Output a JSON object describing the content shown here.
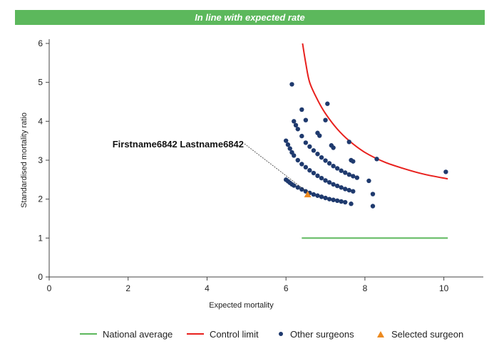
{
  "banner": {
    "text": "In line with expected rate",
    "color": "#5cb85c"
  },
  "chart_data": {
    "type": "scatter",
    "title": "",
    "xlabel": "Expected mortality",
    "ylabel": "Standardised mortality ratio",
    "xlim": [
      0,
      11
    ],
    "ylim": [
      0,
      6
    ],
    "xticks": [
      "0",
      "2",
      "4",
      "6",
      "8",
      "10"
    ],
    "yticks": [
      "0",
      "1",
      "2",
      "3",
      "4",
      "5",
      "6"
    ],
    "grid": false,
    "legend_position": "bottom",
    "callout": {
      "text": "Firstname6842 Lastname6842",
      "x": 6.55,
      "y": 2.12
    },
    "series": [
      {
        "name": "National average",
        "kind": "line",
        "color": "#5cb85c",
        "points": [
          [
            6.4,
            1.0
          ],
          [
            10.1,
            1.0
          ]
        ]
      },
      {
        "name": "Control limit",
        "kind": "line",
        "color": "#e8201d",
        "points": [
          [
            6.42,
            6.0
          ],
          [
            6.5,
            5.5
          ],
          [
            6.6,
            5.0
          ],
          [
            6.8,
            4.55
          ],
          [
            7.0,
            4.2
          ],
          [
            7.3,
            3.8
          ],
          [
            7.6,
            3.5
          ],
          [
            8.0,
            3.2
          ],
          [
            8.5,
            2.95
          ],
          [
            9.0,
            2.78
          ],
          [
            9.5,
            2.64
          ],
          [
            10.1,
            2.52
          ]
        ]
      },
      {
        "name": "Other surgeons",
        "kind": "scatter",
        "color": "#1f3a6e",
        "points": [
          [
            6.0,
            2.5
          ],
          [
            6.05,
            2.46
          ],
          [
            6.1,
            2.42
          ],
          [
            6.15,
            2.38
          ],
          [
            6.2,
            2.35
          ],
          [
            6.3,
            2.3
          ],
          [
            6.4,
            2.25
          ],
          [
            6.5,
            2.2
          ],
          [
            6.6,
            2.16
          ],
          [
            6.7,
            2.12
          ],
          [
            6.8,
            2.09
          ],
          [
            6.9,
            2.06
          ],
          [
            7.0,
            2.03
          ],
          [
            7.1,
            2.0
          ],
          [
            7.2,
            1.98
          ],
          [
            7.3,
            1.96
          ],
          [
            7.4,
            1.94
          ],
          [
            7.5,
            1.92
          ],
          [
            6.0,
            3.5
          ],
          [
            6.05,
            3.4
          ],
          [
            6.1,
            3.3
          ],
          [
            6.15,
            3.2
          ],
          [
            6.2,
            3.12
          ],
          [
            6.3,
            3.0
          ],
          [
            6.4,
            2.9
          ],
          [
            6.5,
            2.82
          ],
          [
            6.6,
            2.74
          ],
          [
            6.7,
            2.67
          ],
          [
            6.8,
            2.6
          ],
          [
            6.9,
            2.54
          ],
          [
            7.0,
            2.48
          ],
          [
            7.1,
            2.43
          ],
          [
            7.2,
            2.38
          ],
          [
            7.3,
            2.34
          ],
          [
            7.4,
            2.3
          ],
          [
            7.5,
            2.26
          ],
          [
            7.6,
            2.23
          ],
          [
            7.7,
            2.2
          ],
          [
            6.5,
            3.45
          ],
          [
            6.6,
            3.35
          ],
          [
            6.7,
            3.25
          ],
          [
            6.8,
            3.16
          ],
          [
            6.9,
            3.07
          ],
          [
            7.0,
            2.99
          ],
          [
            7.1,
            2.92
          ],
          [
            7.2,
            2.85
          ],
          [
            7.3,
            2.79
          ],
          [
            7.4,
            2.73
          ],
          [
            7.5,
            2.68
          ],
          [
            7.6,
            2.63
          ],
          [
            7.7,
            2.59
          ],
          [
            7.8,
            2.55
          ],
          [
            6.15,
            4.95
          ],
          [
            6.4,
            4.3
          ],
          [
            6.2,
            4.0
          ],
          [
            6.25,
            3.9
          ],
          [
            6.3,
            3.8
          ],
          [
            6.5,
            4.03
          ],
          [
            6.4,
            3.62
          ],
          [
            6.8,
            3.7
          ],
          [
            6.85,
            3.63
          ],
          [
            7.0,
            4.03
          ],
          [
            7.05,
            4.45
          ],
          [
            7.15,
            3.38
          ],
          [
            7.2,
            3.32
          ],
          [
            7.6,
            3.47
          ],
          [
            7.65,
            3.0
          ],
          [
            7.7,
            2.97
          ],
          [
            8.1,
            2.47
          ],
          [
            8.2,
            2.13
          ],
          [
            8.2,
            1.82
          ],
          [
            8.3,
            3.03
          ],
          [
            7.65,
            1.88
          ],
          [
            10.05,
            2.7
          ]
        ]
      },
      {
        "name": "Selected surgeon",
        "kind": "marker",
        "color": "#ec8a20",
        "points": [
          [
            6.55,
            2.12
          ]
        ]
      }
    ]
  }
}
